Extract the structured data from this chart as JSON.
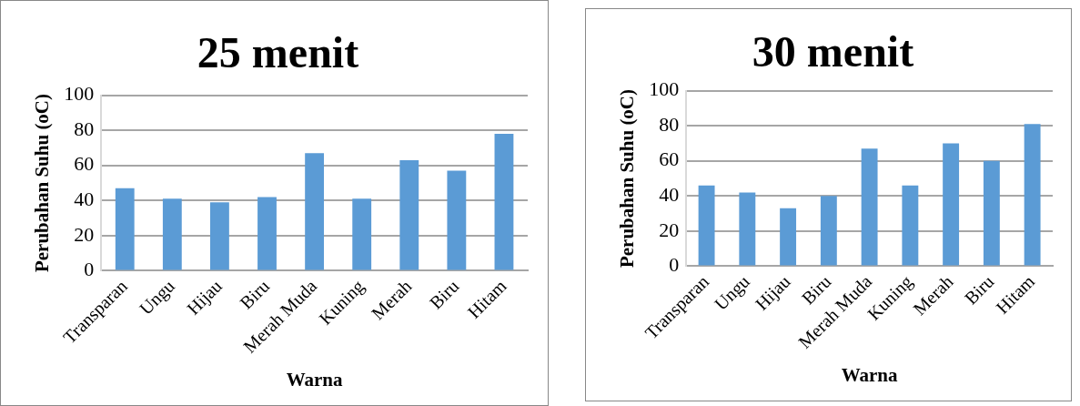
{
  "chart_data": [
    {
      "type": "bar",
      "title": "25 menit",
      "xlabel": "Warna",
      "ylabel": "Perubahan Suhu (oC)",
      "categories": [
        "Transparan",
        "Ungu",
        "Hijau",
        "Biru",
        "Merah Muda",
        "Kuning",
        "Merah",
        "Biru",
        "Hitam"
      ],
      "values": [
        47,
        41,
        39,
        42,
        67,
        41,
        63,
        57,
        78
      ],
      "color": "#5b9bd5",
      "ylim": [
        0,
        100
      ],
      "yticks": [
        0,
        20,
        40,
        60,
        80,
        100
      ],
      "grid": "y"
    },
    {
      "type": "bar",
      "title": "30 menit",
      "xlabel": "Warna",
      "ylabel": "Perubahan Suhu (oC)",
      "categories": [
        "Transparan",
        "Ungu",
        "Hijau",
        "Biru",
        "Merah Muda",
        "Kuning",
        "Merah",
        "Biru",
        "Hitam"
      ],
      "values": [
        46,
        42,
        33,
        40,
        67,
        46,
        70,
        60,
        81
      ],
      "color": "#5b9bd5",
      "ylim": [
        0,
        100
      ],
      "yticks": [
        0,
        20,
        40,
        60,
        80,
        100
      ],
      "grid": "y"
    }
  ]
}
